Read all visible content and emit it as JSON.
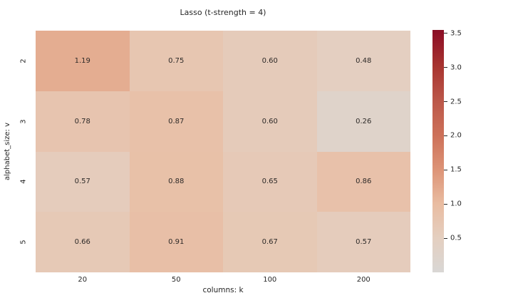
{
  "title": "Lasso (t-strength = 4)",
  "chart_data": {
    "type": "heatmap",
    "title": "Lasso (t-strength = 4)",
    "xlabel": "columns: k",
    "ylabel": "alphabet_size: v",
    "x_categories": [
      "20",
      "50",
      "100",
      "200"
    ],
    "y_categories": [
      "2",
      "3",
      "4",
      "5"
    ],
    "values": [
      [
        1.19,
        0.75,
        0.6,
        0.48
      ],
      [
        0.78,
        0.87,
        0.6,
        0.26
      ],
      [
        0.57,
        0.88,
        0.65,
        0.86
      ],
      [
        0.66,
        0.91,
        0.67,
        0.57
      ]
    ],
    "annotation_format": "2-decimals",
    "grid": false,
    "colorbar": {
      "position": "right",
      "vmin": 0.0,
      "vmax": 3.55,
      "tick_values": [
        3.5,
        3.0,
        2.5,
        2.0,
        1.5,
        1.0,
        0.5
      ],
      "tick_format": "1-decimal"
    },
    "colormap_stops": [
      [
        0.0,
        "#d9d7d5"
      ],
      [
        0.5,
        "#e4cfc0"
      ],
      [
        1.0,
        "#e9bca1"
      ],
      [
        1.5,
        "#dd9477"
      ],
      [
        2.0,
        "#cd7159"
      ],
      [
        2.5,
        "#bc584a"
      ],
      [
        3.0,
        "#a93631"
      ],
      [
        3.5,
        "#8e1026"
      ],
      [
        3.55,
        "#880f25"
      ]
    ],
    "text_color": "#262626",
    "background_color": "#ffffff"
  }
}
